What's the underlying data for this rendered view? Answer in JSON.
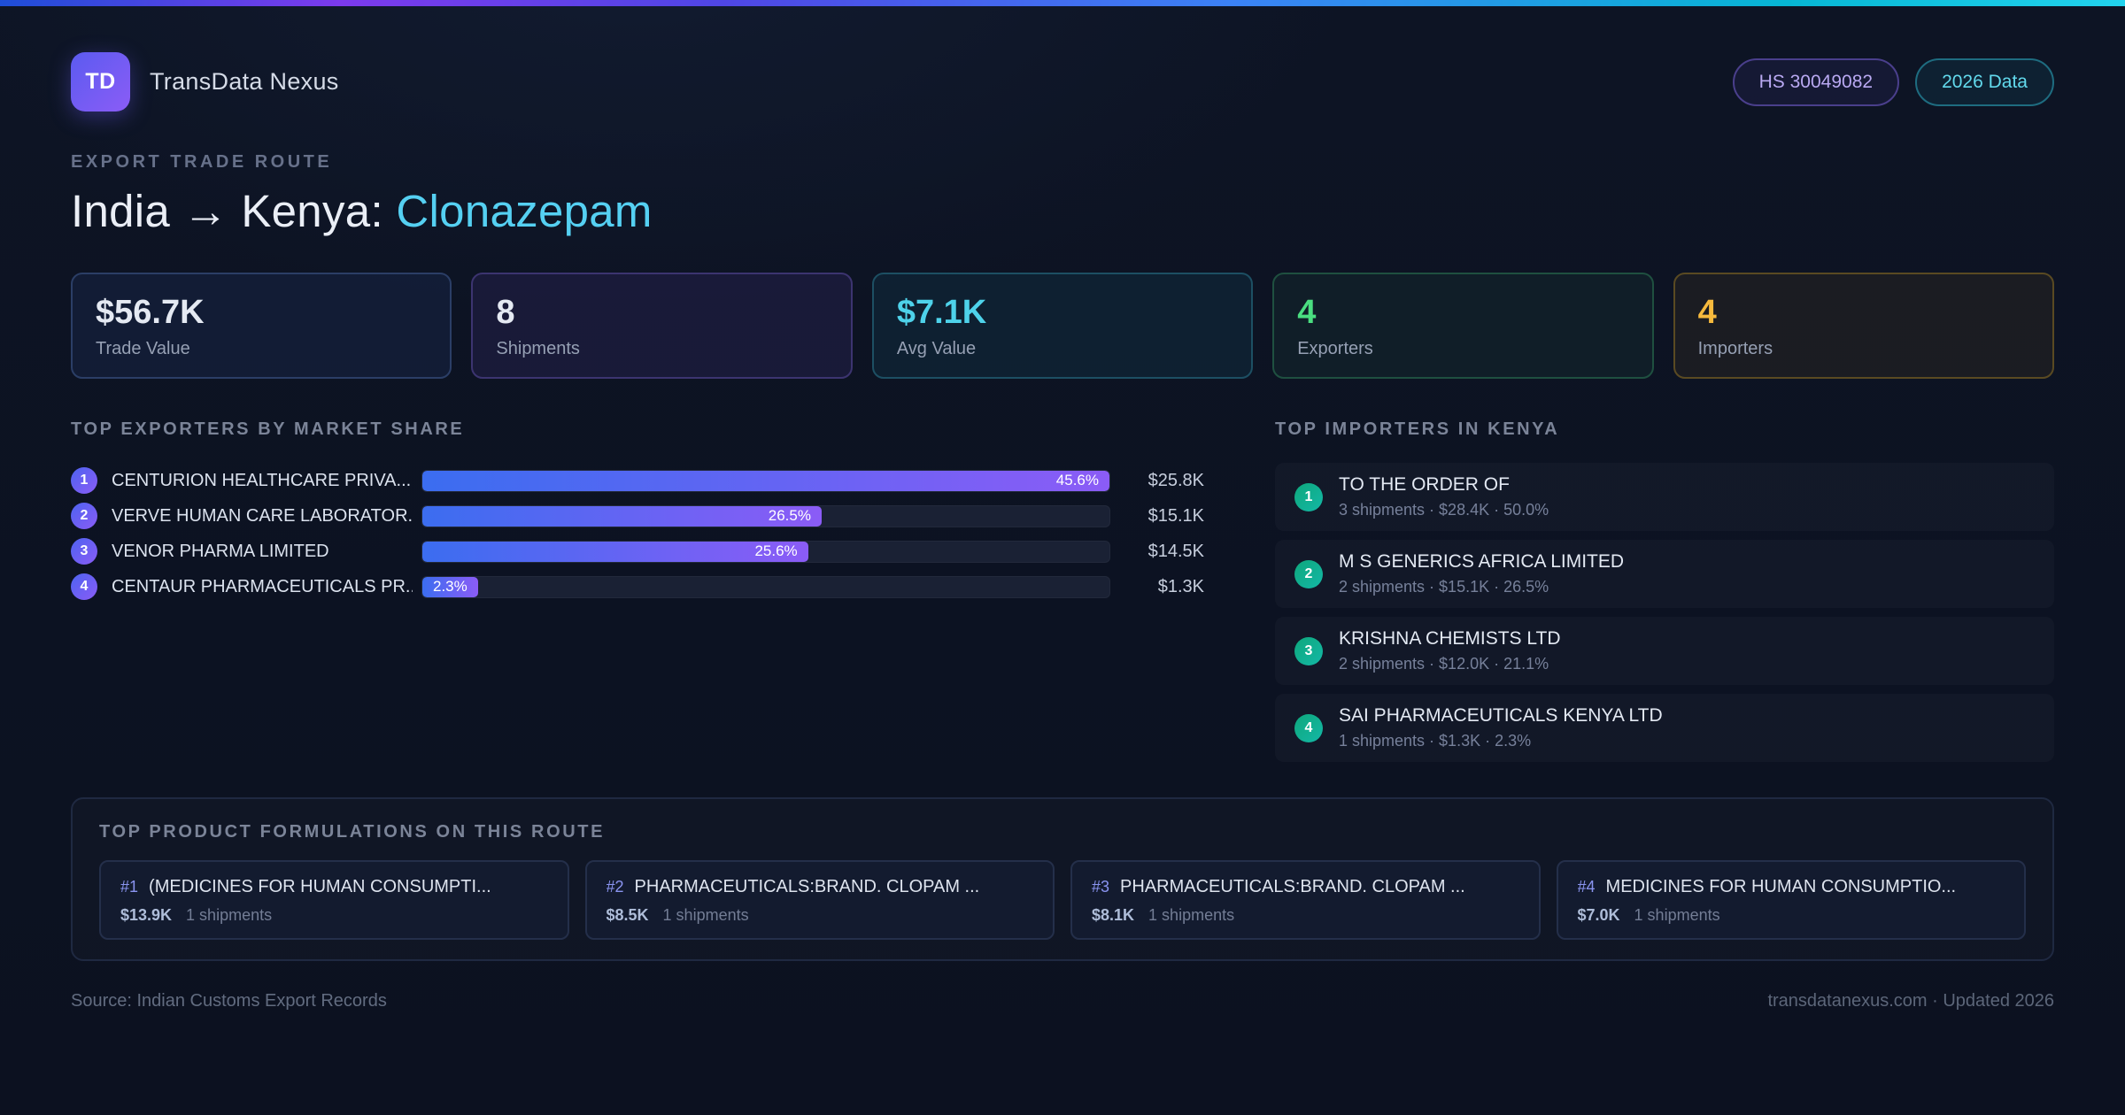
{
  "theme": {
    "accent_purple": "#8b5cf6",
    "accent_cyan": "#55d0f2",
    "accent_green": "#4ade80",
    "accent_amber": "#f6b93d",
    "background": "#0c1220"
  },
  "header": {
    "logo_text": "TD",
    "app_name": "TransData Nexus",
    "badges": [
      {
        "label": "HS 30049082",
        "variant": "purple"
      },
      {
        "label": "2026 Data",
        "variant": "cyan"
      }
    ]
  },
  "hero": {
    "eyebrow": "EXPORT TRADE ROUTE",
    "title_main": "India → Kenya: ",
    "title_accent": "Clonazepam"
  },
  "stats": [
    {
      "value": "$56.7K",
      "label": "Trade Value",
      "variant": "blue"
    },
    {
      "value": "8",
      "label": "Shipments",
      "variant": "purple"
    },
    {
      "value": "$7.1K",
      "label": "Avg Value",
      "variant": "cyan"
    },
    {
      "value": "4",
      "label": "Exporters",
      "variant": "green"
    },
    {
      "value": "4",
      "label": "Importers",
      "variant": "amber"
    }
  ],
  "exporters": {
    "heading": "TOP EXPORTERS BY MARKET SHARE",
    "max_pct": 45.6,
    "rows": [
      {
        "rank": "1",
        "name": "CENTURION HEALTHCARE PRIVA...",
        "pct": 45.6,
        "pct_label": "45.6%",
        "value": "$25.8K"
      },
      {
        "rank": "2",
        "name": "VERVE HUMAN CARE LABORATOR...",
        "pct": 26.5,
        "pct_label": "26.5%",
        "value": "$15.1K"
      },
      {
        "rank": "3",
        "name": "VENOR PHARMA LIMITED",
        "pct": 25.6,
        "pct_label": "25.6%",
        "value": "$14.5K"
      },
      {
        "rank": "4",
        "name": "CENTAUR PHARMACEUTICALS PR...",
        "pct": 2.3,
        "pct_label": "2.3%",
        "value": "$1.3K"
      }
    ]
  },
  "importers": {
    "heading": "TOP IMPORTERS IN KENYA",
    "rows": [
      {
        "rank": "1",
        "name": "TO THE ORDER OF",
        "meta": "3 shipments · $28.4K · 50.0%"
      },
      {
        "rank": "2",
        "name": "M S GENERICS AFRICA LIMITED",
        "meta": "2 shipments · $15.1K · 26.5%"
      },
      {
        "rank": "3",
        "name": "KRISHNA CHEMISTS LTD",
        "meta": "2 shipments · $12.0K · 21.1%"
      },
      {
        "rank": "4",
        "name": "SAI PHARMACEUTICALS KENYA LTD",
        "meta": "1 shipments · $1.3K · 2.3%"
      }
    ]
  },
  "formulations": {
    "heading": "TOP PRODUCT FORMULATIONS ON THIS ROUTE",
    "cards": [
      {
        "rank": "#1",
        "name": "(MEDICINES FOR HUMAN CONSUMPTI...",
        "value": "$13.9K",
        "meta": "1 shipments"
      },
      {
        "rank": "#2",
        "name": "PHARMACEUTICALS:BRAND. CLOPAM ...",
        "value": "$8.5K",
        "meta": "1 shipments"
      },
      {
        "rank": "#3",
        "name": "PHARMACEUTICALS:BRAND. CLOPAM ...",
        "value": "$8.1K",
        "meta": "1 shipments"
      },
      {
        "rank": "#4",
        "name": "MEDICINES FOR HUMAN CONSUMPTIO...",
        "value": "$7.0K",
        "meta": "1 shipments"
      }
    ]
  },
  "footer": {
    "source": "Source: Indian Customs Export Records",
    "site": "transdatanexus.com · Updated 2026"
  },
  "chart_data": {
    "type": "bar",
    "orientation": "horizontal",
    "title": "TOP EXPORTERS BY MARKET SHARE",
    "categories": [
      "CENTURION HEALTHCARE PRIVA...",
      "VERVE HUMAN CARE LABORATOR...",
      "VENOR PHARMA LIMITED",
      "CENTAUR PHARMACEUTICALS PR..."
    ],
    "values": [
      45.6,
      26.5,
      25.6,
      2.3
    ],
    "value_labels": [
      "$25.8K",
      "$15.1K",
      "$14.5K",
      "$1.3K"
    ],
    "xlabel": "",
    "ylabel": "",
    "xlim": [
      0,
      45.6
    ],
    "grid": false,
    "legend": false,
    "note": "bars scaled relative to max value 45.6%"
  }
}
